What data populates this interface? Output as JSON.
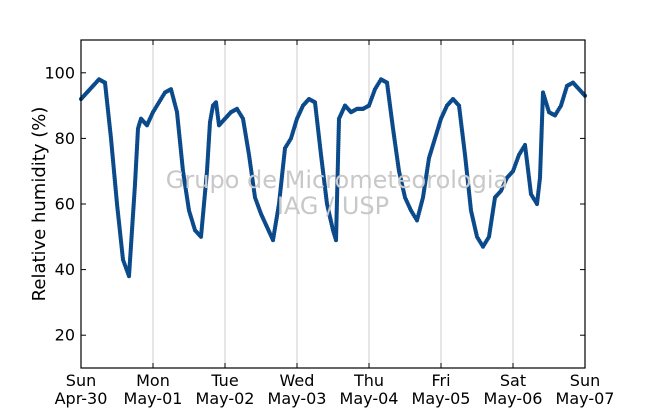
{
  "chart_data": {
    "type": "scatter",
    "title": "",
    "xlabel": "",
    "ylabel": "Relative humidity (%)",
    "ylim": [
      10,
      110
    ],
    "xlim": [
      "2017-04-30 00:00",
      "2017-05-07 00:00"
    ],
    "yticks": [
      20,
      40,
      60,
      80,
      100
    ],
    "xticks": [
      {
        "day": "Sun",
        "date": "Apr-30"
      },
      {
        "day": "Mon",
        "date": "May-01"
      },
      {
        "day": "Tue",
        "date": "May-02"
      },
      {
        "day": "Wed",
        "date": "May-03"
      },
      {
        "day": "Thu",
        "date": "May-04"
      },
      {
        "day": "Fri",
        "date": "May-05"
      },
      {
        "day": "Sat",
        "date": "May-06"
      },
      {
        "day": "Sun",
        "date": "May-07"
      }
    ],
    "grid": "vertical",
    "marker_color": "#0b4a8b",
    "watermark": [
      "Grupo de Micrometeorologia",
      "IAG / USP"
    ],
    "series": [
      {
        "name": "",
        "points": [
          [
            "2017-04-30 00:00",
            92
          ],
          [
            "2017-04-30 02:00",
            94
          ],
          [
            "2017-04-30 04:00",
            96
          ],
          [
            "2017-04-30 06:00",
            98
          ],
          [
            "2017-04-30 08:00",
            97
          ],
          [
            "2017-04-30 10:00",
            80
          ],
          [
            "2017-04-30 12:00",
            60
          ],
          [
            "2017-04-30 14:00",
            43
          ],
          [
            "2017-04-30 16:00",
            38
          ],
          [
            "2017-04-30 18:00",
            66
          ],
          [
            "2017-04-30 19:00",
            83
          ],
          [
            "2017-04-30 20:00",
            86
          ],
          [
            "2017-04-30 22:00",
            84
          ],
          [
            "2017-05-01 00:00",
            88
          ],
          [
            "2017-05-01 02:00",
            91
          ],
          [
            "2017-05-01 04:00",
            94
          ],
          [
            "2017-05-01 06:00",
            95
          ],
          [
            "2017-05-01 08:00",
            88
          ],
          [
            "2017-05-01 10:00",
            70
          ],
          [
            "2017-05-01 12:00",
            58
          ],
          [
            "2017-05-01 14:00",
            52
          ],
          [
            "2017-05-01 16:00",
            50
          ],
          [
            "2017-05-01 18:00",
            70
          ],
          [
            "2017-05-01 19:00",
            85
          ],
          [
            "2017-05-01 20:00",
            90
          ],
          [
            "2017-05-01 21:00",
            91
          ],
          [
            "2017-05-01 22:00",
            84
          ],
          [
            "2017-05-02 00:00",
            86
          ],
          [
            "2017-05-02 02:00",
            88
          ],
          [
            "2017-05-02 04:00",
            89
          ],
          [
            "2017-05-02 06:00",
            86
          ],
          [
            "2017-05-02 08:00",
            75
          ],
          [
            "2017-05-02 10:00",
            62
          ],
          [
            "2017-05-02 12:00",
            57
          ],
          [
            "2017-05-02 14:00",
            53
          ],
          [
            "2017-05-02 16:00",
            49
          ],
          [
            "2017-05-02 18:00",
            60
          ],
          [
            "2017-05-02 20:00",
            77
          ],
          [
            "2017-05-02 22:00",
            80
          ],
          [
            "2017-05-03 00:00",
            86
          ],
          [
            "2017-05-03 02:00",
            90
          ],
          [
            "2017-05-03 04:00",
            92
          ],
          [
            "2017-05-03 06:00",
            91
          ],
          [
            "2017-05-03 08:00",
            75
          ],
          [
            "2017-05-03 10:00",
            60
          ],
          [
            "2017-05-03 12:00",
            52
          ],
          [
            "2017-05-03 13:00",
            49
          ],
          [
            "2017-05-03 14:00",
            86
          ],
          [
            "2017-05-03 16:00",
            90
          ],
          [
            "2017-05-03 18:00",
            88
          ],
          [
            "2017-05-03 20:00",
            89
          ],
          [
            "2017-05-03 22:00",
            89
          ],
          [
            "2017-05-04 00:00",
            90
          ],
          [
            "2017-05-04 02:00",
            95
          ],
          [
            "2017-05-04 04:00",
            98
          ],
          [
            "2017-05-04 06:00",
            97
          ],
          [
            "2017-05-04 08:00",
            83
          ],
          [
            "2017-05-04 10:00",
            70
          ],
          [
            "2017-05-04 12:00",
            62
          ],
          [
            "2017-05-04 14:00",
            58
          ],
          [
            "2017-05-04 16:00",
            55
          ],
          [
            "2017-05-04 18:00",
            62
          ],
          [
            "2017-05-04 20:00",
            74
          ],
          [
            "2017-05-04 22:00",
            80
          ],
          [
            "2017-05-05 00:00",
            86
          ],
          [
            "2017-05-05 02:00",
            90
          ],
          [
            "2017-05-05 04:00",
            92
          ],
          [
            "2017-05-05 06:00",
            90
          ],
          [
            "2017-05-05 08:00",
            75
          ],
          [
            "2017-05-05 10:00",
            58
          ],
          [
            "2017-05-05 12:00",
            50
          ],
          [
            "2017-05-05 14:00",
            47
          ],
          [
            "2017-05-05 16:00",
            50
          ],
          [
            "2017-05-05 18:00",
            62
          ],
          [
            "2017-05-05 20:00",
            64
          ],
          [
            "2017-05-05 22:00",
            68
          ],
          [
            "2017-05-06 00:00",
            70
          ],
          [
            "2017-05-06 02:00",
            75
          ],
          [
            "2017-05-06 04:00",
            78
          ],
          [
            "2017-05-06 06:00",
            63
          ],
          [
            "2017-05-06 08:00",
            60
          ],
          [
            "2017-05-06 09:00",
            68
          ],
          [
            "2017-05-06 10:00",
            94
          ],
          [
            "2017-05-06 12:00",
            88
          ],
          [
            "2017-05-06 14:00",
            87
          ],
          [
            "2017-05-06 16:00",
            90
          ],
          [
            "2017-05-06 18:00",
            96
          ],
          [
            "2017-05-06 20:00",
            97
          ],
          [
            "2017-05-06 22:00",
            95
          ],
          [
            "2017-05-07 00:00",
            93
          ]
        ]
      }
    ]
  }
}
